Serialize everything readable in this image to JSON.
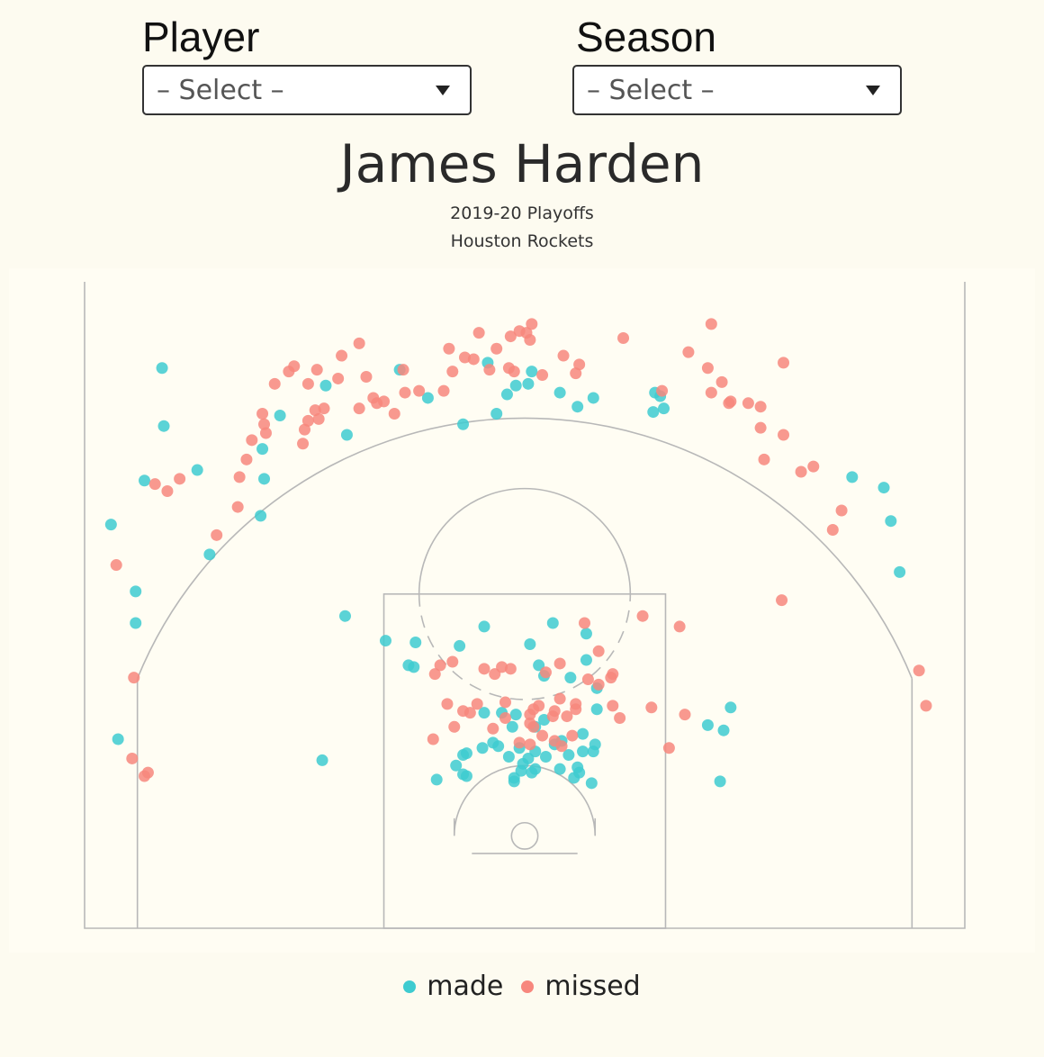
{
  "controls": {
    "player_label": "Player",
    "season_label": "Season",
    "player_select": "– Select –",
    "season_select": "– Select –"
  },
  "header": {
    "title": "James Harden",
    "season": "2019-20 Playoffs",
    "team": "Houston Rockets"
  },
  "colors": {
    "made": "#3ecbd0",
    "missed": "#f7877d",
    "court_line": "#b8b8b8"
  },
  "chart_data": {
    "type": "scatter",
    "x_unit": "ft",
    "y_unit": "ft",
    "xlim": [
      -25,
      25
    ],
    "ylim": [
      -5.25,
      31.5
    ],
    "grid": false,
    "legend": "bottom-center",
    "series": [
      {
        "name": "made",
        "points": [
          [
            -20.6,
            26.6
          ],
          [
            -21.6,
            20.2
          ],
          [
            -23.5,
            17.7
          ],
          [
            -14.9,
            22.0
          ],
          [
            -14.8,
            20.3
          ],
          [
            -15.0,
            18.2
          ],
          [
            -20.5,
            23.3
          ],
          [
            -13.9,
            23.9
          ],
          [
            -17.9,
            16.0
          ],
          [
            -18.6,
            20.8
          ],
          [
            -11.3,
            25.6
          ],
          [
            -10.1,
            22.8
          ],
          [
            -7.1,
            26.5
          ],
          [
            -5.5,
            24.9
          ],
          [
            -3.5,
            23.4
          ],
          [
            -2.1,
            26.9
          ],
          [
            -1.0,
            25.1
          ],
          [
            0.4,
            26.4
          ],
          [
            -1.6,
            24.0
          ],
          [
            -0.5,
            25.6
          ],
          [
            0.2,
            25.7
          ],
          [
            2.0,
            25.2
          ],
          [
            3.9,
            24.9
          ],
          [
            7.3,
            24.1
          ],
          [
            7.4,
            25.2
          ],
          [
            7.9,
            24.3
          ],
          [
            7.7,
            25.0
          ],
          [
            3.0,
            24.4
          ],
          [
            18.6,
            20.4
          ],
          [
            20.4,
            19.8
          ],
          [
            20.8,
            17.9
          ],
          [
            11.7,
            7.3
          ],
          [
            11.1,
            3.1
          ],
          [
            21.3,
            15.0
          ],
          [
            -22.1,
            12.1
          ],
          [
            -22.1,
            13.9
          ],
          [
            -23.1,
            5.5
          ],
          [
            -11.5,
            4.3
          ],
          [
            -10.2,
            12.5
          ],
          [
            -7.9,
            11.1
          ],
          [
            -6.2,
            11.0
          ],
          [
            -6.3,
            9.6
          ],
          [
            -6.6,
            9.7
          ],
          [
            -3.7,
            10.8
          ],
          [
            -2.3,
            11.9
          ],
          [
            0.3,
            10.9
          ],
          [
            1.6,
            12.1
          ],
          [
            0.8,
            9.7
          ],
          [
            1.1,
            9.1
          ],
          [
            2.6,
            9.0
          ],
          [
            3.5,
            11.5
          ],
          [
            3.5,
            10.0
          ],
          [
            4.1,
            8.4
          ],
          [
            4.1,
            7.2
          ],
          [
            10.4,
            6.3
          ],
          [
            11.3,
            6.0
          ],
          [
            -2.3,
            7.0
          ],
          [
            -1.3,
            7.0
          ],
          [
            -0.5,
            6.9
          ],
          [
            -0.7,
            6.2
          ],
          [
            -1.5,
            5.1
          ],
          [
            -0.1,
            4.1
          ],
          [
            -0.9,
            4.5
          ],
          [
            -0.3,
            5.0
          ],
          [
            0.2,
            4.4
          ],
          [
            0.6,
            4.8
          ],
          [
            1.2,
            4.5
          ],
          [
            1.7,
            5.2
          ],
          [
            2.0,
            3.8
          ],
          [
            2.5,
            4.6
          ],
          [
            3.3,
            4.8
          ],
          [
            3.9,
            4.8
          ],
          [
            4.0,
            5.2
          ],
          [
            3.3,
            5.8
          ],
          [
            2.1,
            5.4
          ],
          [
            0.6,
            6.2
          ],
          [
            1.1,
            6.6
          ],
          [
            -1.8,
            5.3
          ],
          [
            -2.4,
            5.0
          ],
          [
            -3.5,
            4.6
          ],
          [
            -3.3,
            4.7
          ],
          [
            -3.9,
            4.0
          ],
          [
            -0.2,
            3.7
          ],
          [
            -3.5,
            3.5
          ],
          [
            -5.0,
            3.2
          ],
          [
            3.0,
            3.9
          ],
          [
            2.8,
            3.3
          ],
          [
            3.1,
            3.6
          ],
          [
            -0.6,
            3.1
          ],
          [
            0.6,
            3.8
          ],
          [
            -0.6,
            3.3
          ],
          [
            0.4,
            3.6
          ],
          [
            3.8,
            3.0
          ],
          [
            -3.3,
            3.4
          ]
        ]
      },
      {
        "name": "missed",
        "points": [
          [
            -23.2,
            15.4
          ],
          [
            -21.0,
            20.0
          ],
          [
            -20.3,
            19.6
          ],
          [
            -19.6,
            20.3
          ],
          [
            -17.5,
            17.1
          ],
          [
            -16.3,
            18.7
          ],
          [
            -16.2,
            20.4
          ],
          [
            -15.8,
            21.4
          ],
          [
            -15.5,
            22.5
          ],
          [
            -14.9,
            24.0
          ],
          [
            -14.8,
            23.4
          ],
          [
            -14.7,
            22.9
          ],
          [
            -14.2,
            25.7
          ],
          [
            -13.4,
            26.4
          ],
          [
            -13.1,
            26.7
          ],
          [
            -12.6,
            22.3
          ],
          [
            -12.5,
            23.1
          ],
          [
            -12.3,
            23.6
          ],
          [
            -11.9,
            24.2
          ],
          [
            -12.3,
            25.7
          ],
          [
            -11.8,
            26.5
          ],
          [
            -11.7,
            23.7
          ],
          [
            -11.4,
            24.3
          ],
          [
            -10.6,
            26.0
          ],
          [
            -10.4,
            27.3
          ],
          [
            -9.4,
            28.0
          ],
          [
            -9.0,
            26.1
          ],
          [
            -9.4,
            24.3
          ],
          [
            -8.6,
            24.9
          ],
          [
            -8.4,
            24.6
          ],
          [
            -8.0,
            24.7
          ],
          [
            -7.4,
            24.0
          ],
          [
            -6.8,
            25.2
          ],
          [
            -6.9,
            26.5
          ],
          [
            -6.0,
            25.3
          ],
          [
            -4.1,
            26.4
          ],
          [
            -4.6,
            25.3
          ],
          [
            -4.3,
            27.7
          ],
          [
            -3.4,
            27.2
          ],
          [
            -2.9,
            27.1
          ],
          [
            -2.6,
            28.6
          ],
          [
            -2.0,
            26.5
          ],
          [
            -1.6,
            27.7
          ],
          [
            -0.8,
            28.4
          ],
          [
            -0.3,
            28.7
          ],
          [
            0.1,
            28.6
          ],
          [
            0.4,
            29.1
          ],
          [
            0.3,
            28.2
          ],
          [
            -0.9,
            26.6
          ],
          [
            -0.6,
            26.4
          ],
          [
            1.0,
            26.2
          ],
          [
            2.2,
            27.3
          ],
          [
            2.9,
            26.3
          ],
          [
            3.1,
            26.8
          ],
          [
            5.6,
            28.3
          ],
          [
            7.8,
            25.3
          ],
          [
            9.3,
            27.5
          ],
          [
            10.6,
            29.1
          ],
          [
            10.4,
            26.6
          ],
          [
            10.6,
            25.2
          ],
          [
            11.2,
            25.8
          ],
          [
            11.6,
            24.6
          ],
          [
            11.7,
            24.7
          ],
          [
            12.7,
            24.6
          ],
          [
            13.4,
            24.4
          ],
          [
            13.4,
            23.2
          ],
          [
            14.7,
            26.9
          ],
          [
            14.7,
            22.8
          ],
          [
            13.6,
            21.4
          ],
          [
            15.7,
            20.7
          ],
          [
            16.4,
            21.0
          ],
          [
            17.5,
            17.4
          ],
          [
            18.0,
            18.5
          ],
          [
            14.6,
            13.4
          ],
          [
            6.7,
            12.5
          ],
          [
            8.8,
            11.9
          ],
          [
            3.4,
            12.1
          ],
          [
            9.1,
            6.9
          ],
          [
            -4.8,
            9.7
          ],
          [
            -5.1,
            9.2
          ],
          [
            -1.3,
            9.6
          ],
          [
            -0.8,
            9.5
          ],
          [
            0.3,
            6.9
          ],
          [
            -1.1,
            7.6
          ],
          [
            4.2,
            10.5
          ],
          [
            4.2,
            8.6
          ],
          [
            2.9,
            7.2
          ],
          [
            1.6,
            6.8
          ],
          [
            1.0,
            5.7
          ],
          [
            1.7,
            5.4
          ],
          [
            2.1,
            5.1
          ],
          [
            2.7,
            5.7
          ],
          [
            -0.3,
            5.3
          ],
          [
            0.5,
            6.2
          ],
          [
            0.3,
            5.2
          ],
          [
            -1.8,
            6.1
          ],
          [
            -5.2,
            5.5
          ],
          [
            -4.0,
            6.2
          ],
          [
            -2.7,
            7.5
          ],
          [
            -4.1,
            9.9
          ],
          [
            -4.4,
            7.5
          ],
          [
            -2.3,
            9.5
          ],
          [
            -1.7,
            9.2
          ],
          [
            1.2,
            9.3
          ],
          [
            2.0,
            9.8
          ],
          [
            5.0,
            9.2
          ],
          [
            4.9,
            9.0
          ],
          [
            3.6,
            8.9
          ],
          [
            2.0,
            7.8
          ],
          [
            2.9,
            7.5
          ],
          [
            5.4,
            6.7
          ],
          [
            5.0,
            7.4
          ],
          [
            0.8,
            7.4
          ],
          [
            0.5,
            7.2
          ],
          [
            1.7,
            7.1
          ],
          [
            2.4,
            6.8
          ],
          [
            -3.1,
            7.0
          ],
          [
            -3.5,
            7.1
          ],
          [
            -1.1,
            6.7
          ],
          [
            0.3,
            6.4
          ],
          [
            -22.2,
            9.0
          ],
          [
            -22.3,
            4.4
          ],
          [
            -21.6,
            3.4
          ],
          [
            -21.4,
            3.6
          ],
          [
            22.8,
            7.4
          ],
          [
            22.4,
            9.4
          ],
          [
            8.2,
            5.0
          ],
          [
            7.2,
            7.3
          ]
        ]
      }
    ]
  },
  "legend": {
    "made": "made",
    "missed": "missed"
  }
}
